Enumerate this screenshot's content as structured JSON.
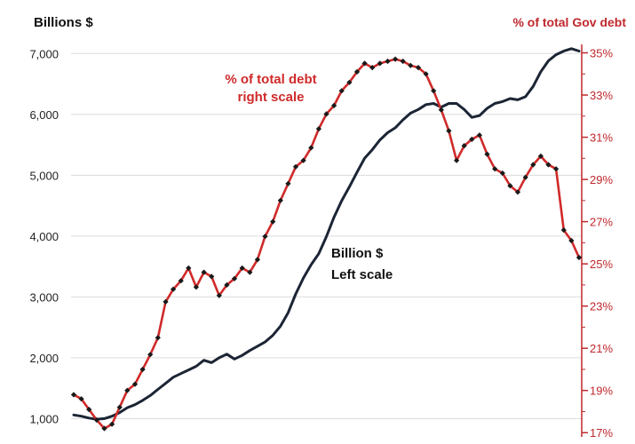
{
  "chart_data": {
    "type": "line",
    "left_axis": {
      "label": "Billions  $",
      "ticks": [
        "1,000",
        "2,000",
        "3,000",
        "4,000",
        "5,000",
        "6,000",
        "7,000"
      ],
      "tick_values": [
        1000,
        2000,
        3000,
        4000,
        5000,
        6000,
        7000
      ],
      "range": [
        700,
        7150
      ]
    },
    "right_axis": {
      "label": "% of total Gov debt",
      "ticks": [
        "17%",
        "19%",
        "21%",
        "23%",
        "25%",
        "27%",
        "29%",
        "31%",
        "33%",
        "35%"
      ],
      "tick_values": [
        17,
        19,
        21,
        23,
        25,
        27,
        29,
        31,
        33,
        35
      ],
      "range": [
        16.8,
        35.4
      ]
    },
    "gridlines": true,
    "colors": {
      "billions": "#1c2535",
      "percent": "#d02a2a",
      "right_axis": "#c0282d",
      "grid": "#dcdcdc"
    },
    "annotations": {
      "percent_line": [
        "% of total debt",
        "right scale"
      ],
      "billions_line": [
        "Billion $",
        "Left scale"
      ]
    },
    "series": [
      {
        "axis": "left",
        "values": [
          1060,
          1040,
          1010,
          990,
          1000,
          1040,
          1100,
          1180,
          1230,
          1300,
          1380,
          1480,
          1580,
          1680,
          1740,
          1800,
          1860,
          1960,
          1920,
          2000,
          2060,
          1980,
          2040,
          2120,
          2190,
          2260,
          2370,
          2520,
          2740,
          3050,
          3310,
          3530,
          3710,
          3990,
          4310,
          4580,
          4810,
          5050,
          5280,
          5420,
          5580,
          5700,
          5780,
          5910,
          6020,
          6080,
          6160,
          6180,
          6120,
          6180,
          6180,
          6080,
          5950,
          5980,
          6100,
          6180,
          6210,
          6260,
          6240,
          6290,
          6460,
          6700,
          6880,
          6980,
          7040,
          7080,
          7040
        ]
      },
      {
        "axis": "right",
        "values": [
          18.8,
          18.6,
          18.1,
          17.6,
          17.2,
          17.4,
          18.2,
          19.0,
          19.3,
          20.0,
          20.7,
          21.5,
          23.2,
          23.8,
          24.2,
          24.8,
          23.9,
          24.6,
          24.4,
          23.5,
          24.0,
          24.3,
          24.8,
          24.6,
          25.2,
          26.3,
          27.0,
          28.0,
          28.8,
          29.6,
          29.9,
          30.5,
          31.4,
          32.1,
          32.5,
          33.2,
          33.6,
          34.1,
          34.5,
          34.3,
          34.5,
          34.6,
          34.7,
          34.6,
          34.4,
          34.3,
          34.0,
          33.2,
          32.3,
          31.3,
          29.9,
          30.6,
          30.9,
          31.1,
          30.2,
          29.5,
          29.3,
          28.7,
          28.4,
          29.1,
          29.7,
          30.1,
          29.7,
          29.5,
          26.6,
          26.1,
          25.3
        ]
      }
    ]
  }
}
